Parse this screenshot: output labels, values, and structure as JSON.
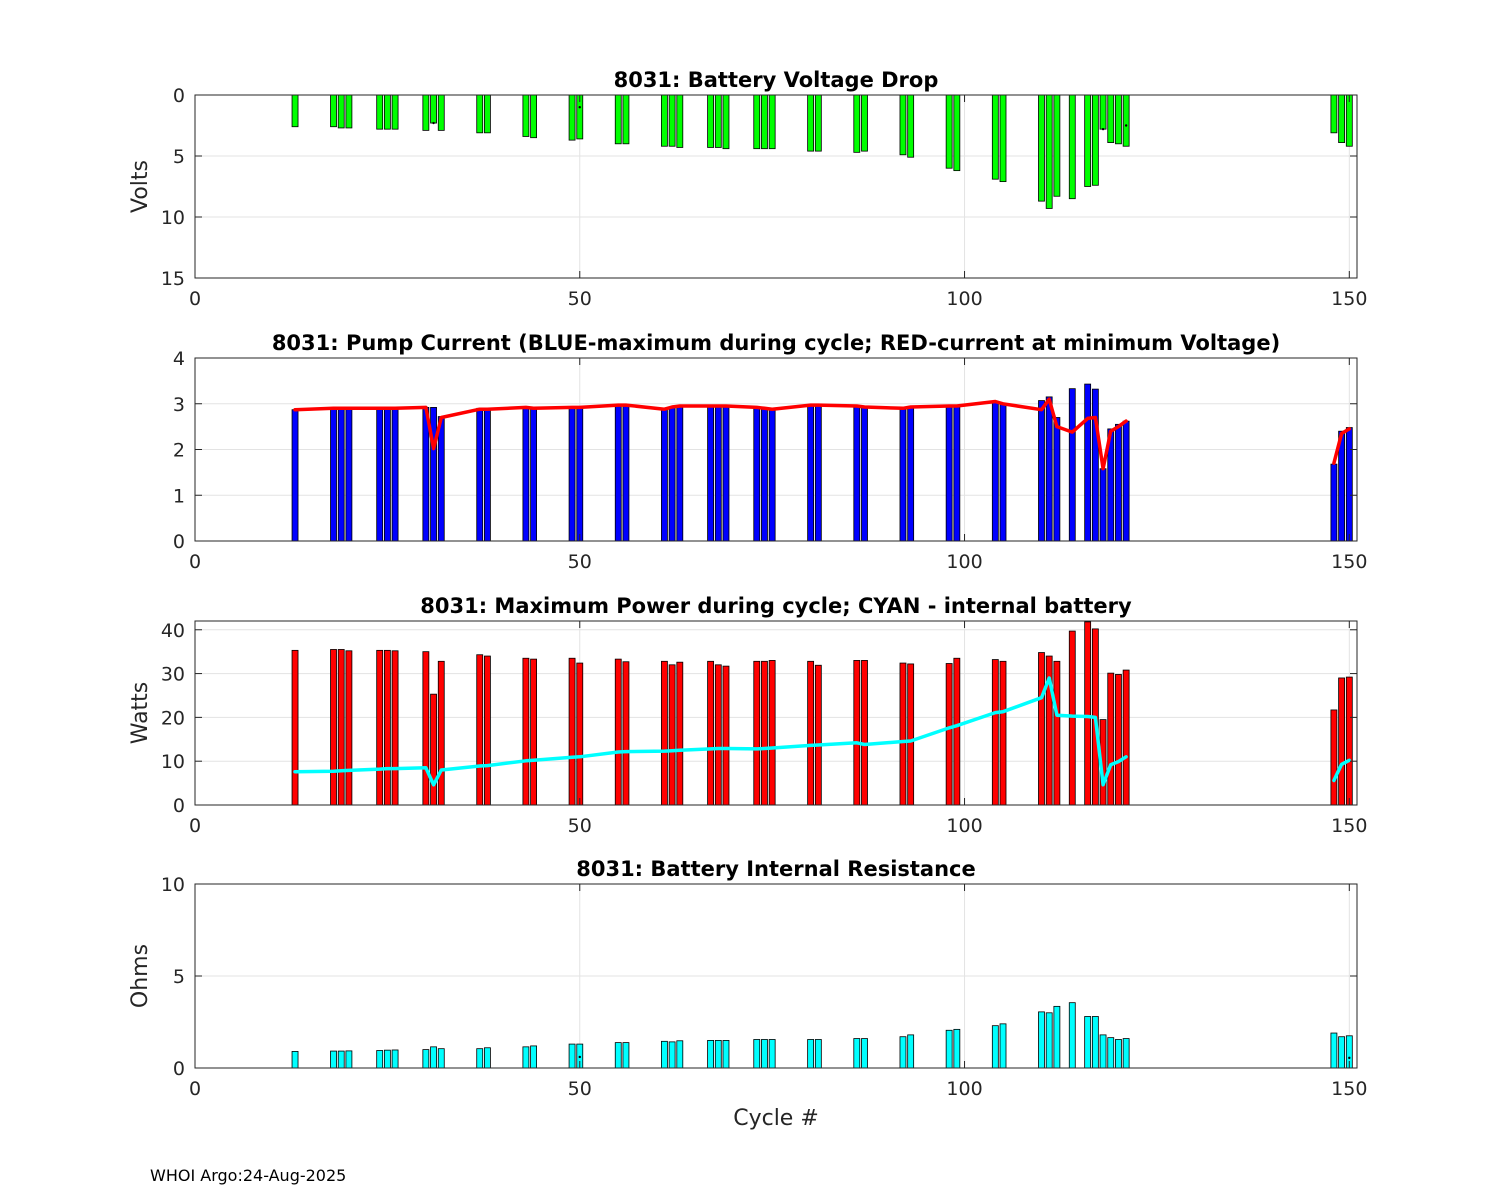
{
  "footer_text": "WHOI Argo:24-Aug-2025",
  "chart_data": [
    {
      "type": "bar",
      "title": "8031: Battery Voltage Drop",
      "xlabel": "",
      "ylabel": "Volts",
      "xlim": [
        0,
        151
      ],
      "ylim": [
        0,
        15
      ],
      "yreversed": true,
      "xticks": [
        0,
        50,
        100,
        150
      ],
      "yticks": [
        0,
        5,
        10,
        15
      ],
      "grid": true,
      "bar_color": "#00ff00",
      "bars": [
        {
          "x": 13,
          "v": 2.6
        },
        {
          "x": 18,
          "v": 2.6
        },
        {
          "x": 19,
          "v": 2.7
        },
        {
          "x": 20,
          "v": 2.7
        },
        {
          "x": 24,
          "v": 2.8
        },
        {
          "x": 25,
          "v": 2.8
        },
        {
          "x": 26,
          "v": 2.8
        },
        {
          "x": 30,
          "v": 2.9
        },
        {
          "x": 31,
          "v": 2.3
        },
        {
          "x": 32,
          "v": 2.9
        },
        {
          "x": 37,
          "v": 3.1
        },
        {
          "x": 38,
          "v": 3.1
        },
        {
          "x": 43,
          "v": 3.4
        },
        {
          "x": 44,
          "v": 3.5
        },
        {
          "x": 49,
          "v": 3.7
        },
        {
          "x": 50,
          "v": 3.6
        },
        {
          "x": 55,
          "v": 4.0
        },
        {
          "x": 56,
          "v": 4.0
        },
        {
          "x": 61,
          "v": 4.2
        },
        {
          "x": 62,
          "v": 4.2
        },
        {
          "x": 63,
          "v": 4.3
        },
        {
          "x": 67,
          "v": 4.3
        },
        {
          "x": 68,
          "v": 4.3
        },
        {
          "x": 69,
          "v": 4.4
        },
        {
          "x": 73,
          "v": 4.4
        },
        {
          "x": 74,
          "v": 4.4
        },
        {
          "x": 75,
          "v": 4.4
        },
        {
          "x": 80,
          "v": 4.6
        },
        {
          "x": 81,
          "v": 4.6
        },
        {
          "x": 86,
          "v": 4.7
        },
        {
          "x": 87,
          "v": 4.6
        },
        {
          "x": 92,
          "v": 4.9
        },
        {
          "x": 93,
          "v": 5.1
        },
        {
          "x": 98,
          "v": 6.0
        },
        {
          "x": 99,
          "v": 6.2
        },
        {
          "x": 104,
          "v": 6.9
        },
        {
          "x": 105,
          "v": 7.1
        },
        {
          "x": 110,
          "v": 8.7
        },
        {
          "x": 111,
          "v": 9.3
        },
        {
          "x": 112,
          "v": 8.3
        },
        {
          "x": 114,
          "v": 8.5
        },
        {
          "x": 116,
          "v": 7.5
        },
        {
          "x": 117,
          "v": 7.4
        },
        {
          "x": 118,
          "v": 2.8
        },
        {
          "x": 119,
          "v": 3.9
        },
        {
          "x": 120,
          "v": 4.0
        },
        {
          "x": 121,
          "v": 4.2
        },
        {
          "x": 148,
          "v": 3.1
        },
        {
          "x": 149,
          "v": 3.9
        },
        {
          "x": 150,
          "v": 4.2
        }
      ],
      "dots": [
        {
          "x": 31,
          "v": 2.3
        },
        {
          "x": 50,
          "v": 1.0
        },
        {
          "x": 118,
          "v": 2.8
        },
        {
          "x": 121,
          "v": 2.5
        }
      ]
    },
    {
      "type": "bar",
      "title": "8031: Pump Current (BLUE-maximum during cycle; RED-current at minimum Voltage)",
      "xlabel": "",
      "ylabel": "",
      "xlim": [
        0,
        151
      ],
      "ylim": [
        0,
        4
      ],
      "xticks": [
        0,
        50,
        100,
        150
      ],
      "yticks": [
        0,
        1,
        2,
        3,
        4
      ],
      "grid": true,
      "bar_color": "#0000ff",
      "bars": [
        {
          "x": 13,
          "v": 2.87
        },
        {
          "x": 18,
          "v": 2.9
        },
        {
          "x": 19,
          "v": 2.9
        },
        {
          "x": 20,
          "v": 2.9
        },
        {
          "x": 24,
          "v": 2.9
        },
        {
          "x": 25,
          "v": 2.9
        },
        {
          "x": 26,
          "v": 2.9
        },
        {
          "x": 30,
          "v": 2.92
        },
        {
          "x": 31,
          "v": 2.92
        },
        {
          "x": 32,
          "v": 2.72
        },
        {
          "x": 37,
          "v": 2.9
        },
        {
          "x": 38,
          "v": 2.9
        },
        {
          "x": 43,
          "v": 2.92
        },
        {
          "x": 44,
          "v": 2.9
        },
        {
          "x": 49,
          "v": 2.92
        },
        {
          "x": 50,
          "v": 2.92
        },
        {
          "x": 55,
          "v": 2.97
        },
        {
          "x": 56,
          "v": 2.97
        },
        {
          "x": 61,
          "v": 2.9
        },
        {
          "x": 62,
          "v": 2.93
        },
        {
          "x": 63,
          "v": 2.95
        },
        {
          "x": 67,
          "v": 2.95
        },
        {
          "x": 68,
          "v": 2.95
        },
        {
          "x": 69,
          "v": 2.95
        },
        {
          "x": 73,
          "v": 2.92
        },
        {
          "x": 74,
          "v": 2.9
        },
        {
          "x": 75,
          "v": 2.88
        },
        {
          "x": 80,
          "v": 2.97
        },
        {
          "x": 81,
          "v": 2.97
        },
        {
          "x": 86,
          "v": 2.95
        },
        {
          "x": 87,
          "v": 2.93
        },
        {
          "x": 92,
          "v": 2.92
        },
        {
          "x": 93,
          "v": 2.93
        },
        {
          "x": 98,
          "v": 2.95
        },
        {
          "x": 99,
          "v": 2.95
        },
        {
          "x": 104,
          "v": 3.05
        },
        {
          "x": 105,
          "v": 3.0
        },
        {
          "x": 110,
          "v": 3.07
        },
        {
          "x": 111,
          "v": 3.15
        },
        {
          "x": 112,
          "v": 2.7
        },
        {
          "x": 114,
          "v": 3.33
        },
        {
          "x": 116,
          "v": 3.43
        },
        {
          "x": 117,
          "v": 3.32
        },
        {
          "x": 118,
          "v": 1.58
        },
        {
          "x": 119,
          "v": 2.45
        },
        {
          "x": 120,
          "v": 2.55
        },
        {
          "x": 121,
          "v": 2.62
        },
        {
          "x": 148,
          "v": 1.68
        },
        {
          "x": 149,
          "v": 2.4
        },
        {
          "x": 150,
          "v": 2.48
        }
      ],
      "line": {
        "name": "current at minimum Voltage",
        "color": "#ff0000",
        "x": [
          13,
          18,
          19,
          20,
          24,
          25,
          26,
          30,
          31,
          32,
          37,
          38,
          43,
          44,
          49,
          50,
          55,
          56,
          61,
          62,
          63,
          67,
          68,
          69,
          73,
          74,
          75,
          80,
          81,
          86,
          87,
          92,
          93,
          98,
          99,
          104,
          105,
          110,
          111,
          112,
          114,
          116,
          117,
          118,
          119,
          120,
          121,
          null,
          148,
          149,
          150
        ],
        "y": [
          2.87,
          2.9,
          2.9,
          2.9,
          2.9,
          2.9,
          2.9,
          2.92,
          2.02,
          2.7,
          2.88,
          2.88,
          2.92,
          2.9,
          2.92,
          2.92,
          2.97,
          2.97,
          2.88,
          2.93,
          2.95,
          2.95,
          2.95,
          2.95,
          2.92,
          2.9,
          2.88,
          2.97,
          2.97,
          2.95,
          2.93,
          2.9,
          2.93,
          2.95,
          2.95,
          3.05,
          3.0,
          2.87,
          3.1,
          2.5,
          2.38,
          2.68,
          2.7,
          1.58,
          2.4,
          2.5,
          2.62,
          null,
          1.7,
          2.35,
          2.45
        ]
      }
    },
    {
      "type": "bar",
      "title": "8031: Maximum Power during cycle; CYAN - internal battery",
      "xlabel": "",
      "ylabel": "Watts",
      "xlim": [
        0,
        151
      ],
      "ylim": [
        0,
        42
      ],
      "xticks": [
        0,
        50,
        100,
        150
      ],
      "yticks": [
        0,
        10,
        20,
        30,
        40
      ],
      "grid": true,
      "bar_color": "#ff0000",
      "bars": [
        {
          "x": 13,
          "v": 35.3
        },
        {
          "x": 18,
          "v": 35.5
        },
        {
          "x": 19,
          "v": 35.5
        },
        {
          "x": 20,
          "v": 35.2
        },
        {
          "x": 24,
          "v": 35.3
        },
        {
          "x": 25,
          "v": 35.3
        },
        {
          "x": 26,
          "v": 35.2
        },
        {
          "x": 30,
          "v": 35.0
        },
        {
          "x": 31,
          "v": 25.3
        },
        {
          "x": 32,
          "v": 32.8
        },
        {
          "x": 37,
          "v": 34.3
        },
        {
          "x": 38,
          "v": 34.0
        },
        {
          "x": 43,
          "v": 33.5
        },
        {
          "x": 44,
          "v": 33.3
        },
        {
          "x": 49,
          "v": 33.5
        },
        {
          "x": 50,
          "v": 32.4
        },
        {
          "x": 55,
          "v": 33.3
        },
        {
          "x": 56,
          "v": 32.7
        },
        {
          "x": 61,
          "v": 32.8
        },
        {
          "x": 62,
          "v": 32.0
        },
        {
          "x": 63,
          "v": 32.6
        },
        {
          "x": 67,
          "v": 32.8
        },
        {
          "x": 68,
          "v": 32.0
        },
        {
          "x": 69,
          "v": 31.7
        },
        {
          "x": 73,
          "v": 32.8
        },
        {
          "x": 74,
          "v": 32.8
        },
        {
          "x": 75,
          "v": 33.0
        },
        {
          "x": 80,
          "v": 32.8
        },
        {
          "x": 81,
          "v": 31.9
        },
        {
          "x": 86,
          "v": 33.0
        },
        {
          "x": 87,
          "v": 33.0
        },
        {
          "x": 92,
          "v": 32.4
        },
        {
          "x": 93,
          "v": 32.2
        },
        {
          "x": 98,
          "v": 32.3
        },
        {
          "x": 99,
          "v": 33.5
        },
        {
          "x": 104,
          "v": 33.2
        },
        {
          "x": 105,
          "v": 32.8
        },
        {
          "x": 110,
          "v": 34.8
        },
        {
          "x": 111,
          "v": 34.0
        },
        {
          "x": 112,
          "v": 32.8
        },
        {
          "x": 114,
          "v": 39.7
        },
        {
          "x": 116,
          "v": 41.8
        },
        {
          "x": 117,
          "v": 40.2
        },
        {
          "x": 118,
          "v": 19.5
        },
        {
          "x": 119,
          "v": 30.1
        },
        {
          "x": 120,
          "v": 29.8
        },
        {
          "x": 121,
          "v": 30.8
        },
        {
          "x": 148,
          "v": 21.7
        },
        {
          "x": 149,
          "v": 29.0
        },
        {
          "x": 150,
          "v": 29.2
        }
      ],
      "line": {
        "name": "internal battery",
        "color": "#00ffff",
        "x": [
          13,
          18,
          19,
          20,
          24,
          25,
          26,
          30,
          31,
          32,
          37,
          38,
          43,
          44,
          49,
          50,
          55,
          56,
          61,
          62,
          63,
          67,
          68,
          69,
          73,
          74,
          75,
          80,
          81,
          86,
          87,
          92,
          93,
          98,
          99,
          104,
          105,
          110,
          111,
          112,
          114,
          116,
          117,
          118,
          119,
          120,
          121,
          null,
          148,
          149,
          150
        ],
        "y": [
          7.6,
          7.7,
          7.8,
          7.9,
          8.2,
          8.3,
          8.3,
          8.5,
          4.6,
          8.0,
          8.9,
          9.0,
          10.1,
          10.2,
          10.9,
          11.0,
          12.1,
          12.2,
          12.3,
          12.4,
          12.5,
          12.8,
          12.9,
          12.9,
          12.8,
          12.9,
          13.0,
          13.6,
          13.7,
          14.2,
          13.8,
          14.5,
          14.6,
          17.6,
          18.1,
          21.1,
          21.3,
          24.5,
          29.0,
          20.5,
          20.3,
          20.2,
          20.0,
          4.6,
          9.2,
          9.9,
          11.0,
          null,
          5.6,
          9.3,
          10.2
        ]
      }
    },
    {
      "type": "bar",
      "title": "8031: Battery Internal Resistance",
      "xlabel": "Cycle #",
      "ylabel": "Ohms",
      "xlim": [
        0,
        151
      ],
      "ylim": [
        0,
        10
      ],
      "xticks": [
        0,
        50,
        100,
        150
      ],
      "yticks": [
        0,
        5,
        10
      ],
      "grid": true,
      "bar_color": "#00ffff",
      "bars": [
        {
          "x": 13,
          "v": 0.9
        },
        {
          "x": 18,
          "v": 0.92
        },
        {
          "x": 19,
          "v": 0.92
        },
        {
          "x": 20,
          "v": 0.93
        },
        {
          "x": 24,
          "v": 0.95
        },
        {
          "x": 25,
          "v": 0.97
        },
        {
          "x": 26,
          "v": 0.98
        },
        {
          "x": 30,
          "v": 1.0
        },
        {
          "x": 31,
          "v": 1.15
        },
        {
          "x": 32,
          "v": 1.05
        },
        {
          "x": 37,
          "v": 1.05
        },
        {
          "x": 38,
          "v": 1.1
        },
        {
          "x": 43,
          "v": 1.15
        },
        {
          "x": 44,
          "v": 1.2
        },
        {
          "x": 49,
          "v": 1.3
        },
        {
          "x": 50,
          "v": 1.3
        },
        {
          "x": 55,
          "v": 1.38
        },
        {
          "x": 56,
          "v": 1.38
        },
        {
          "x": 61,
          "v": 1.45
        },
        {
          "x": 62,
          "v": 1.42
        },
        {
          "x": 63,
          "v": 1.48
        },
        {
          "x": 67,
          "v": 1.5
        },
        {
          "x": 68,
          "v": 1.5
        },
        {
          "x": 69,
          "v": 1.5
        },
        {
          "x": 73,
          "v": 1.55
        },
        {
          "x": 74,
          "v": 1.55
        },
        {
          "x": 75,
          "v": 1.55
        },
        {
          "x": 80,
          "v": 1.55
        },
        {
          "x": 81,
          "v": 1.55
        },
        {
          "x": 86,
          "v": 1.6
        },
        {
          "x": 87,
          "v": 1.6
        },
        {
          "x": 92,
          "v": 1.7
        },
        {
          "x": 93,
          "v": 1.8
        },
        {
          "x": 98,
          "v": 2.05
        },
        {
          "x": 99,
          "v": 2.1
        },
        {
          "x": 104,
          "v": 2.3
        },
        {
          "x": 105,
          "v": 2.4
        },
        {
          "x": 110,
          "v": 3.05
        },
        {
          "x": 111,
          "v": 3.0
        },
        {
          "x": 112,
          "v": 3.35
        },
        {
          "x": 114,
          "v": 3.55
        },
        {
          "x": 116,
          "v": 2.8
        },
        {
          "x": 117,
          "v": 2.8
        },
        {
          "x": 118,
          "v": 1.8
        },
        {
          "x": 119,
          "v": 1.65
        },
        {
          "x": 120,
          "v": 1.55
        },
        {
          "x": 121,
          "v": 1.6
        },
        {
          "x": 148,
          "v": 1.9
        },
        {
          "x": 149,
          "v": 1.7
        },
        {
          "x": 150,
          "v": 1.75
        }
      ],
      "dots": [
        {
          "x": 50,
          "v": 0.6
        },
        {
          "x": 150,
          "v": 0.55
        }
      ]
    }
  ]
}
